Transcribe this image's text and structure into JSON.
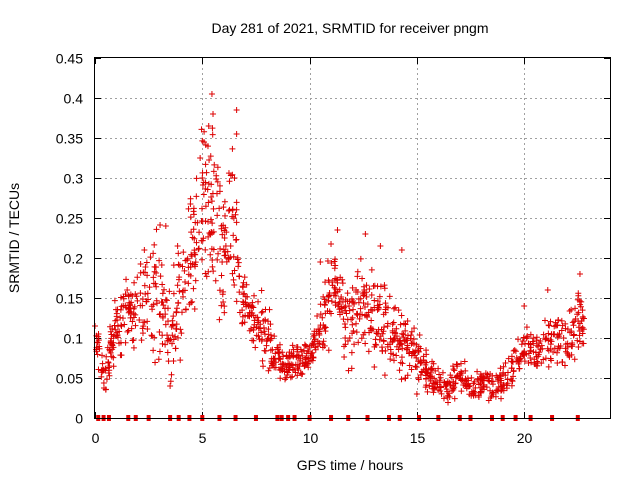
{
  "chart_data": {
    "type": "scatter",
    "title": "Day 281 of 2021, SRMTID for receiver pngm",
    "xlabel": "GPS time / hours",
    "ylabel": "SRMTID / TECUs",
    "xlim": [
      0,
      24
    ],
    "ylim": [
      0,
      0.45
    ],
    "x_ticks": [
      0,
      5,
      10,
      15,
      20
    ],
    "x_tick_labels": [
      "0",
      "5",
      "10",
      "15",
      "20"
    ],
    "y_ticks": [
      0,
      0.05,
      0.1,
      0.15,
      0.2,
      0.25,
      0.3,
      0.35,
      0.4,
      0.45
    ],
    "y_tick_labels": [
      "0",
      "0.05",
      "0.1",
      "0.15",
      "0.2",
      "0.25",
      "0.3",
      "0.35",
      "0.4",
      "0.45"
    ],
    "grid": true,
    "marker": "plus",
    "series_color": "#dd0000",
    "series": [
      {
        "name": "SRMTID",
        "trend": [
          [
            0.0,
            0.1,
            0.02
          ],
          [
            0.5,
            0.05,
            0.02
          ],
          [
            0.8,
            0.1,
            0.03
          ],
          [
            1.2,
            0.12,
            0.03
          ],
          [
            1.6,
            0.13,
            0.03
          ],
          [
            2.0,
            0.14,
            0.04
          ],
          [
            2.5,
            0.15,
            0.05
          ],
          [
            3.0,
            0.16,
            0.06
          ],
          [
            3.4,
            0.1,
            0.04
          ],
          [
            3.8,
            0.14,
            0.05
          ],
          [
            4.2,
            0.18,
            0.06
          ],
          [
            4.6,
            0.22,
            0.06
          ],
          [
            5.0,
            0.25,
            0.07
          ],
          [
            5.3,
            0.26,
            0.08
          ],
          [
            5.6,
            0.24,
            0.07
          ],
          [
            6.0,
            0.2,
            0.06
          ],
          [
            6.4,
            0.23,
            0.07
          ],
          [
            6.8,
            0.15,
            0.03
          ],
          [
            7.2,
            0.13,
            0.02
          ],
          [
            7.6,
            0.12,
            0.03
          ],
          [
            8.0,
            0.1,
            0.03
          ],
          [
            8.4,
            0.08,
            0.02
          ],
          [
            8.8,
            0.06,
            0.02
          ],
          [
            9.2,
            0.07,
            0.02
          ],
          [
            9.6,
            0.08,
            0.02
          ],
          [
            10.0,
            0.08,
            0.02
          ],
          [
            10.4,
            0.1,
            0.02
          ],
          [
            10.8,
            0.14,
            0.04
          ],
          [
            11.2,
            0.17,
            0.04
          ],
          [
            11.6,
            0.13,
            0.04
          ],
          [
            12.0,
            0.12,
            0.04
          ],
          [
            12.4,
            0.15,
            0.04
          ],
          [
            12.8,
            0.12,
            0.04
          ],
          [
            13.2,
            0.14,
            0.04
          ],
          [
            13.6,
            0.11,
            0.04
          ],
          [
            14.0,
            0.1,
            0.03
          ],
          [
            14.4,
            0.09,
            0.03
          ],
          [
            14.8,
            0.09,
            0.02
          ],
          [
            15.2,
            0.07,
            0.02
          ],
          [
            15.6,
            0.05,
            0.015
          ],
          [
            16.0,
            0.045,
            0.015
          ],
          [
            16.5,
            0.04,
            0.015
          ],
          [
            17.0,
            0.05,
            0.015
          ],
          [
            17.5,
            0.04,
            0.015
          ],
          [
            18.0,
            0.04,
            0.015
          ],
          [
            18.5,
            0.04,
            0.015
          ],
          [
            19.0,
            0.04,
            0.015
          ],
          [
            19.5,
            0.06,
            0.02
          ],
          [
            20.0,
            0.09,
            0.02
          ],
          [
            20.5,
            0.08,
            0.02
          ],
          [
            21.0,
            0.09,
            0.025
          ],
          [
            21.5,
            0.1,
            0.025
          ],
          [
            22.0,
            0.09,
            0.025
          ],
          [
            22.5,
            0.12,
            0.03
          ],
          [
            22.8,
            0.12,
            0.03
          ]
        ],
        "peaks": [
          [
            0.0,
            0.115
          ],
          [
            1.5,
            0.16
          ],
          [
            2.3,
            0.21
          ],
          [
            3.3,
            0.24
          ],
          [
            4.9,
            0.325
          ],
          [
            5.0,
            0.3
          ],
          [
            5.3,
            0.365
          ],
          [
            5.45,
            0.405
          ],
          [
            5.5,
            0.38
          ],
          [
            6.1,
            0.215
          ],
          [
            6.6,
            0.385
          ],
          [
            6.6,
            0.355
          ],
          [
            6.5,
            0.3
          ],
          [
            10.5,
            0.195
          ],
          [
            11.3,
            0.235
          ],
          [
            12.6,
            0.23
          ],
          [
            13.3,
            0.215
          ],
          [
            14.3,
            0.21
          ],
          [
            20.0,
            0.14
          ],
          [
            21.1,
            0.16
          ],
          [
            22.6,
            0.18
          ],
          [
            3.5,
            0.04
          ],
          [
            15.0,
            0.03
          ],
          [
            18.5,
            0.03
          ]
        ],
        "zero_x": [
          0.15,
          0.4,
          0.65,
          1.55,
          1.9,
          2.5,
          3.5,
          3.9,
          4.4,
          5.0,
          5.8,
          6.55,
          7.5,
          8.5,
          8.7,
          9.0,
          9.3,
          10.0,
          11.0,
          11.8,
          12.7,
          13.7,
          14.2,
          15.1,
          16.0,
          17.0,
          17.5,
          18.5,
          19.0,
          19.6,
          20.3,
          21.3,
          22.5
        ],
        "zero_y": 0.0
      }
    ]
  }
}
